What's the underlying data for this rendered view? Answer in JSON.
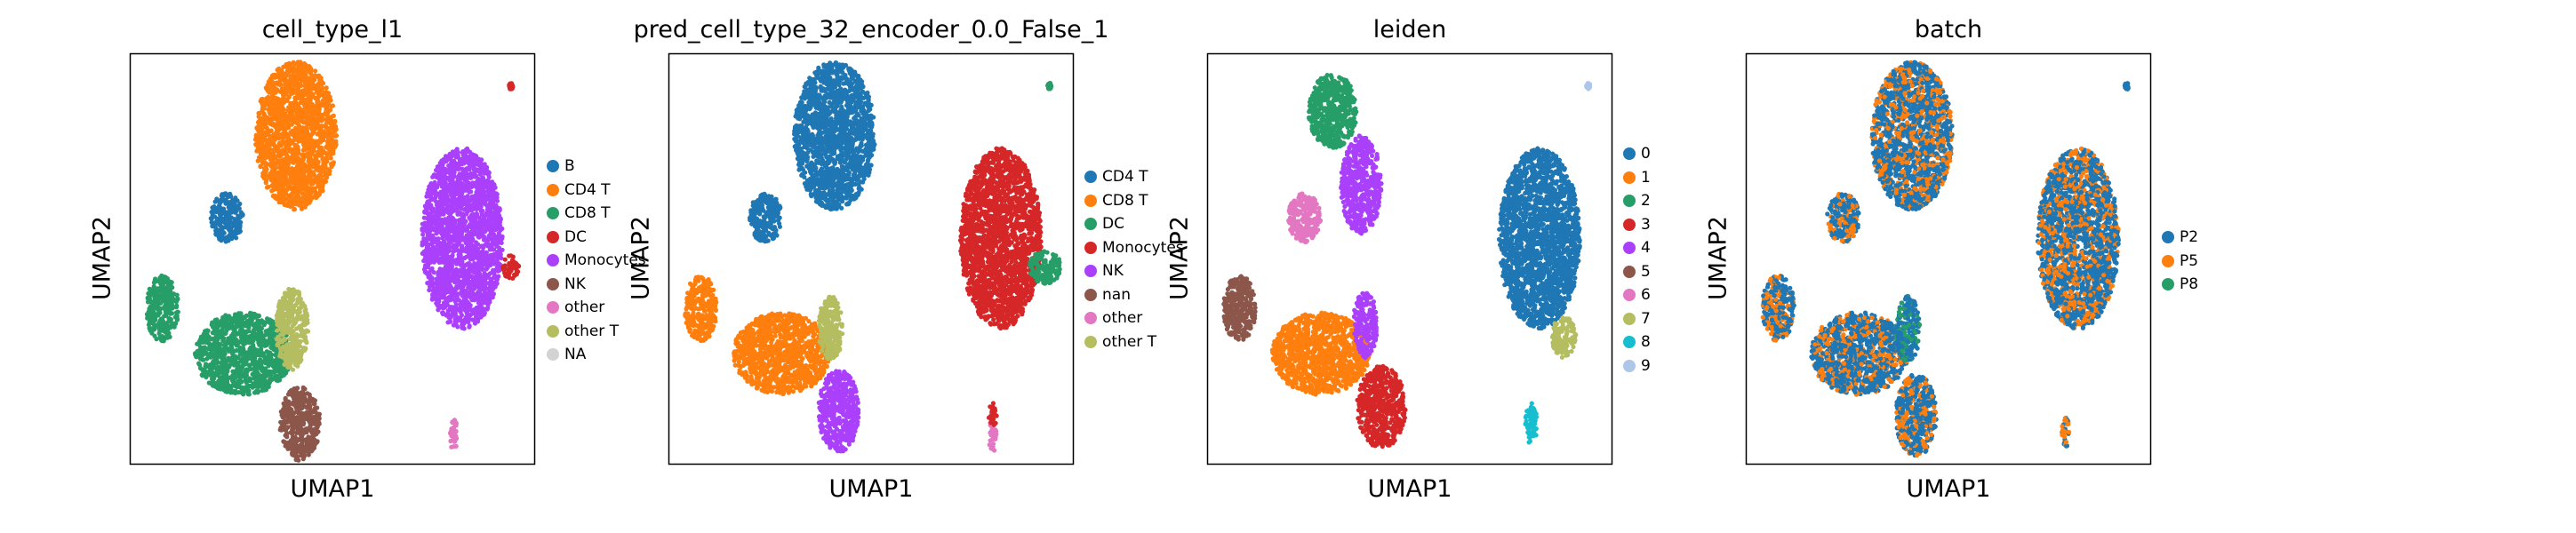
{
  "chart_data": [
    {
      "type": "scatter",
      "title": "cell_type_l1",
      "xlabel": "UMAP1",
      "ylabel": "UMAP2",
      "grid": false,
      "legend_position": "right",
      "legend": [
        {
          "name": "B",
          "color": "#1f77b4"
        },
        {
          "name": "CD4 T",
          "color": "#ff7f0e"
        },
        {
          "name": "CD8 T",
          "color": "#279e68"
        },
        {
          "name": "DC",
          "color": "#d62728"
        },
        {
          "name": "Monocytes",
          "color": "#aa40fc"
        },
        {
          "name": "NK",
          "color": "#8c564b"
        },
        {
          "name": "other",
          "color": "#e377c2"
        },
        {
          "name": "other T",
          "color": "#b5bd61"
        },
        {
          "name": "NA",
          "color": "#d3d3d3"
        }
      ],
      "clusters": [
        {
          "name": "CD4 T",
          "color": "#ff7f0e",
          "cx": 0.41,
          "cy": 0.8,
          "rx": 0.1,
          "ry": 0.18
        },
        {
          "name": "B",
          "color": "#1f77b4",
          "cx": 0.24,
          "cy": 0.6,
          "rx": 0.04,
          "ry": 0.06
        },
        {
          "name": "Monocytes",
          "color": "#aa40fc",
          "cx": 0.82,
          "cy": 0.55,
          "rx": 0.1,
          "ry": 0.22
        },
        {
          "name": "CD8 T",
          "color": "#279e68",
          "cx": 0.08,
          "cy": 0.38,
          "rx": 0.04,
          "ry": 0.08
        },
        {
          "name": "CD8 T",
          "color": "#279e68",
          "cx": 0.28,
          "cy": 0.27,
          "rx": 0.12,
          "ry": 0.1
        },
        {
          "name": "other T",
          "color": "#b5bd61",
          "cx": 0.4,
          "cy": 0.33,
          "rx": 0.04,
          "ry": 0.1
        },
        {
          "name": "NK",
          "color": "#8c564b",
          "cx": 0.42,
          "cy": 0.1,
          "rx": 0.05,
          "ry": 0.09
        },
        {
          "name": "other",
          "color": "#e377c2",
          "cx": 0.8,
          "cy": 0.07,
          "rx": 0.01,
          "ry": 0.04
        },
        {
          "name": "DC",
          "color": "#d62728",
          "cx": 0.94,
          "cy": 0.48,
          "rx": 0.02,
          "ry": 0.03
        },
        {
          "name": "DC",
          "color": "#d62728",
          "cx": 0.94,
          "cy": 0.92,
          "rx": 0.005,
          "ry": 0.008
        }
      ]
    },
    {
      "type": "scatter",
      "title": "pred_cell_type_32_encoder_0.0_False_1",
      "xlabel": "UMAP1",
      "ylabel": "UMAP2",
      "grid": false,
      "legend_position": "right",
      "legend": [
        {
          "name": "CD4 T",
          "color": "#1f77b4"
        },
        {
          "name": "CD8 T",
          "color": "#ff7f0e"
        },
        {
          "name": "DC",
          "color": "#279e68"
        },
        {
          "name": "Monocytes",
          "color": "#d62728"
        },
        {
          "name": "NK",
          "color": "#aa40fc"
        },
        {
          "name": "nan",
          "color": "#8c564b"
        },
        {
          "name": "other",
          "color": "#e377c2"
        },
        {
          "name": "other T",
          "color": "#b5bd61"
        }
      ],
      "clusters": [
        {
          "name": "CD4 T",
          "color": "#1f77b4",
          "cx": 0.41,
          "cy": 0.8,
          "rx": 0.1,
          "ry": 0.18
        },
        {
          "name": "CD4 T",
          "color": "#1f77b4",
          "cx": 0.24,
          "cy": 0.6,
          "rx": 0.04,
          "ry": 0.06
        },
        {
          "name": "Monocytes",
          "color": "#d62728",
          "cx": 0.82,
          "cy": 0.55,
          "rx": 0.1,
          "ry": 0.22
        },
        {
          "name": "DC",
          "color": "#279e68",
          "cx": 0.93,
          "cy": 0.48,
          "rx": 0.04,
          "ry": 0.04
        },
        {
          "name": "CD8 T",
          "color": "#ff7f0e",
          "cx": 0.08,
          "cy": 0.38,
          "rx": 0.04,
          "ry": 0.08
        },
        {
          "name": "CD8 T",
          "color": "#ff7f0e",
          "cx": 0.28,
          "cy": 0.27,
          "rx": 0.12,
          "ry": 0.1
        },
        {
          "name": "other T",
          "color": "#b5bd61",
          "cx": 0.4,
          "cy": 0.33,
          "rx": 0.03,
          "ry": 0.08
        },
        {
          "name": "NK",
          "color": "#aa40fc",
          "cx": 0.42,
          "cy": 0.13,
          "rx": 0.05,
          "ry": 0.1
        },
        {
          "name": "other",
          "color": "#e377c2",
          "cx": 0.8,
          "cy": 0.07,
          "rx": 0.01,
          "ry": 0.04
        },
        {
          "name": "Monocytes",
          "color": "#d62728",
          "cx": 0.8,
          "cy": 0.12,
          "rx": 0.01,
          "ry": 0.03
        },
        {
          "name": "DC",
          "color": "#279e68",
          "cx": 0.94,
          "cy": 0.92,
          "rx": 0.005,
          "ry": 0.008
        }
      ]
    },
    {
      "type": "scatter",
      "title": "leiden",
      "xlabel": "UMAP1",
      "ylabel": "UMAP2",
      "grid": false,
      "legend_position": "right",
      "legend": [
        {
          "name": "0",
          "color": "#1f77b4"
        },
        {
          "name": "1",
          "color": "#ff7f0e"
        },
        {
          "name": "2",
          "color": "#279e68"
        },
        {
          "name": "3",
          "color": "#d62728"
        },
        {
          "name": "4",
          "color": "#aa40fc"
        },
        {
          "name": "5",
          "color": "#8c564b"
        },
        {
          "name": "6",
          "color": "#e377c2"
        },
        {
          "name": "7",
          "color": "#b5bd61"
        },
        {
          "name": "8",
          "color": "#17becf"
        },
        {
          "name": "9",
          "color": "#aec7e8"
        }
      ],
      "clusters": [
        {
          "name": "2",
          "color": "#279e68",
          "cx": 0.31,
          "cy": 0.86,
          "rx": 0.06,
          "ry": 0.09
        },
        {
          "name": "4",
          "color": "#aa40fc",
          "cx": 0.38,
          "cy": 0.68,
          "rx": 0.05,
          "ry": 0.12
        },
        {
          "name": "6",
          "color": "#e377c2",
          "cx": 0.24,
          "cy": 0.6,
          "rx": 0.04,
          "ry": 0.06
        },
        {
          "name": "0",
          "color": "#1f77b4",
          "cx": 0.82,
          "cy": 0.55,
          "rx": 0.1,
          "ry": 0.22
        },
        {
          "name": "7",
          "color": "#b5bd61",
          "cx": 0.88,
          "cy": 0.31,
          "rx": 0.03,
          "ry": 0.05
        },
        {
          "name": "5",
          "color": "#8c564b",
          "cx": 0.08,
          "cy": 0.38,
          "rx": 0.04,
          "ry": 0.08
        },
        {
          "name": "1",
          "color": "#ff7f0e",
          "cx": 0.28,
          "cy": 0.27,
          "rx": 0.12,
          "ry": 0.1
        },
        {
          "name": "4",
          "color": "#aa40fc",
          "cx": 0.39,
          "cy": 0.34,
          "rx": 0.03,
          "ry": 0.08
        },
        {
          "name": "3",
          "color": "#d62728",
          "cx": 0.43,
          "cy": 0.14,
          "rx": 0.06,
          "ry": 0.1
        },
        {
          "name": "8",
          "color": "#17becf",
          "cx": 0.8,
          "cy": 0.1,
          "rx": 0.015,
          "ry": 0.05
        },
        {
          "name": "9",
          "color": "#aec7e8",
          "cx": 0.94,
          "cy": 0.92,
          "rx": 0.005,
          "ry": 0.008
        }
      ]
    },
    {
      "type": "scatter",
      "title": "batch",
      "xlabel": "UMAP1",
      "ylabel": "UMAP2",
      "grid": false,
      "legend_position": "right",
      "legend": [
        {
          "name": "P2",
          "color": "#1f77b4"
        },
        {
          "name": "P5",
          "color": "#ff7f0e"
        },
        {
          "name": "P8",
          "color": "#279e68"
        }
      ],
      "clusters": [
        {
          "name": "P2",
          "color": "#1f77b4",
          "cx": 0.41,
          "cy": 0.8,
          "rx": 0.1,
          "ry": 0.18,
          "mix": "#ff7f0e"
        },
        {
          "name": "P2",
          "color": "#1f77b4",
          "cx": 0.24,
          "cy": 0.6,
          "rx": 0.04,
          "ry": 0.06,
          "mix": "#ff7f0e"
        },
        {
          "name": "P2",
          "color": "#1f77b4",
          "cx": 0.82,
          "cy": 0.55,
          "rx": 0.1,
          "ry": 0.22,
          "mix": "#ff7f0e"
        },
        {
          "name": "P2",
          "color": "#1f77b4",
          "cx": 0.08,
          "cy": 0.38,
          "rx": 0.04,
          "ry": 0.08,
          "mix": "#ff7f0e"
        },
        {
          "name": "P2",
          "color": "#1f77b4",
          "cx": 0.28,
          "cy": 0.27,
          "rx": 0.12,
          "ry": 0.1,
          "mix": "#ff7f0e"
        },
        {
          "name": "P2",
          "color": "#1f77b4",
          "cx": 0.4,
          "cy": 0.33,
          "rx": 0.03,
          "ry": 0.08,
          "mix": "#279e68"
        },
        {
          "name": "P2",
          "color": "#1f77b4",
          "cx": 0.42,
          "cy": 0.12,
          "rx": 0.05,
          "ry": 0.1,
          "mix": "#ff7f0e"
        },
        {
          "name": "P5",
          "color": "#ff7f0e",
          "cx": 0.79,
          "cy": 0.08,
          "rx": 0.01,
          "ry": 0.04,
          "mix": "#1f77b4"
        },
        {
          "name": "P2",
          "color": "#1f77b4",
          "cx": 0.94,
          "cy": 0.92,
          "rx": 0.005,
          "ry": 0.008,
          "mix": "#1f77b4"
        }
      ]
    }
  ]
}
